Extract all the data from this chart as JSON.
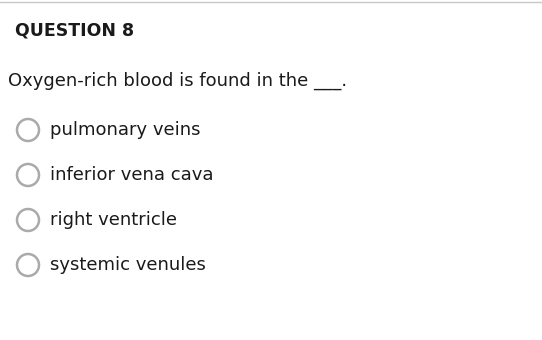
{
  "title": "QUESTION 8",
  "question": "Oxygen-rich blood is found in the ___.",
  "options": [
    "pulmonary veins",
    "inferior vena cava",
    "right ventricle",
    "systemic venules"
  ],
  "bg_color": "#ffffff",
  "title_color": "#1a1a1a",
  "title_fontsize": 12.5,
  "question_fontsize": 13,
  "option_fontsize": 13,
  "top_border_color": "#c8c8c8",
  "circle_edge_color": "#aaaaaa",
  "circle_linewidth": 1.8
}
